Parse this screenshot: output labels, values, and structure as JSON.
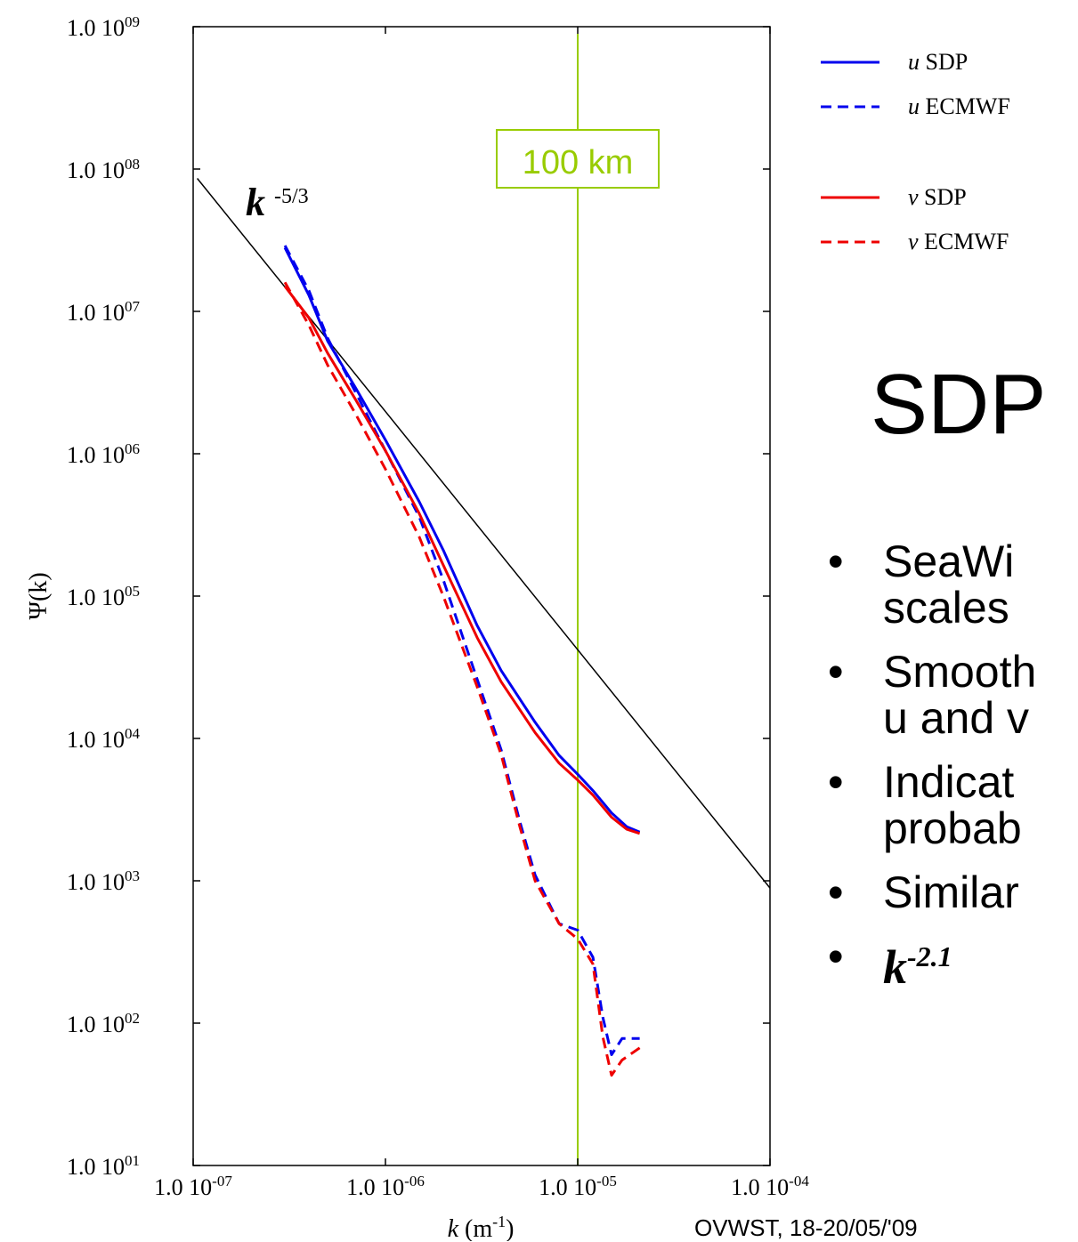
{
  "chart_data": {
    "type": "line",
    "x_scale": "log",
    "y_scale": "log",
    "xlim": [
      1e-07,
      0.0001
    ],
    "ylim": [
      10,
      1000000000.0
    ],
    "xlabel_main": "k",
    "xlabel_unit_base": "(m",
    "xlabel_unit_exp": "-1",
    "xlabel_unit_close": ")",
    "ylabel": "Ψ(k)",
    "x_ticks": [
      {
        "value": 1e-07,
        "base": "1.0 10",
        "exp": "-07"
      },
      {
        "value": 1e-06,
        "base": "1.0 10",
        "exp": "-06"
      },
      {
        "value": 1e-05,
        "base": "1.0 10",
        "exp": "-05"
      },
      {
        "value": 0.0001,
        "base": "1.0 10",
        "exp": "-04"
      }
    ],
    "y_ticks": [
      {
        "value": 1000000000.0,
        "base": "1.0 10",
        "exp": "09"
      },
      {
        "value": 100000000.0,
        "base": "1.0 10",
        "exp": "08"
      },
      {
        "value": 10000000.0,
        "base": "1.0 10",
        "exp": "07"
      },
      {
        "value": 1000000.0,
        "base": "1.0 10",
        "exp": "06"
      },
      {
        "value": 100000.0,
        "base": "1.0 10",
        "exp": "05"
      },
      {
        "value": 10000.0,
        "base": "1.0 10",
        "exp": "04"
      },
      {
        "value": 1000.0,
        "base": "1.0 10",
        "exp": "03"
      },
      {
        "value": 100.0,
        "base": "1.0 10",
        "exp": "02"
      },
      {
        "value": 10.0,
        "base": "1.0 10",
        "exp": "01"
      }
    ],
    "series": [
      {
        "name_var": "u",
        "name_src": "SDP",
        "color": "#0000ee",
        "dash": "solid",
        "points": [
          [
            3e-07,
            28000000.0
          ],
          [
            4e-07,
            13000000.0
          ],
          [
            5e-07,
            6200000.0
          ],
          [
            7e-07,
            2900000.0
          ],
          [
            1e-06,
            1250000.0
          ],
          [
            1.5e-06,
            460000.0
          ],
          [
            2e-06,
            210000.0
          ],
          [
            3e-06,
            62000.0
          ],
          [
            4e-06,
            30000.0
          ],
          [
            6e-06,
            13000.0
          ],
          [
            8e-06,
            7600.0
          ],
          [
            1e-05,
            5600.0
          ],
          [
            1.2e-05,
            4300.0
          ],
          [
            1.5e-05,
            3000.0
          ],
          [
            1.8e-05,
            2400.0
          ],
          [
            2.1e-05,
            2200.0
          ]
        ]
      },
      {
        "name_var": "u",
        "name_src": "ECMWF",
        "color": "#0000ee",
        "dash": "dashed",
        "points": [
          [
            3e-07,
            29000000.0
          ],
          [
            4e-07,
            14000000.0
          ],
          [
            5e-07,
            6500000.0
          ],
          [
            7e-07,
            2700000.0
          ],
          [
            1e-06,
            1050000.0
          ],
          [
            1.5e-06,
            360000.0
          ],
          [
            2e-06,
            130000.0
          ],
          [
            3e-06,
            26000.0
          ],
          [
            4e-06,
            8300.0
          ],
          [
            5e-06,
            2600.0
          ],
          [
            6e-06,
            1100.0
          ],
          [
            8e-06,
            500.0
          ],
          [
            1e-05,
            450.0
          ],
          [
            1.2e-05,
            290.0
          ],
          [
            1.35e-05,
            110.0
          ],
          [
            1.5e-05,
            60.0
          ],
          [
            1.7e-05,
            78.0
          ],
          [
            2.1e-05,
            78.0
          ]
        ]
      },
      {
        "name_var": "v",
        "name_src": "SDP",
        "color": "#ee0000",
        "dash": "solid",
        "points": [
          [
            3e-07,
            15000000.0
          ],
          [
            4e-07,
            9000000.0
          ],
          [
            5e-07,
            5100000.0
          ],
          [
            7e-07,
            2400000.0
          ],
          [
            1e-06,
            1050000.0
          ],
          [
            1.5e-06,
            380000.0
          ],
          [
            2e-06,
            165000.0
          ],
          [
            3e-06,
            51000.0
          ],
          [
            4e-06,
            25000.0
          ],
          [
            6e-06,
            11000.0
          ],
          [
            8e-06,
            6700.0
          ],
          [
            1e-05,
            5100.0
          ],
          [
            1.2e-05,
            4000.0
          ],
          [
            1.5e-05,
            2800.0
          ],
          [
            1.8e-05,
            2300.0
          ],
          [
            2.1e-05,
            2150.0
          ]
        ]
      },
      {
        "name_var": "v",
        "name_src": "ECMWF",
        "color": "#ee0000",
        "dash": "dashed",
        "points": [
          [
            3e-07,
            16000000.0
          ],
          [
            4e-07,
            8000000.0
          ],
          [
            5e-07,
            4200000.0
          ],
          [
            7e-07,
            1900000.0
          ],
          [
            1e-06,
            780000.0
          ],
          [
            1.5e-06,
            260000.0
          ],
          [
            2e-06,
            100000.0
          ],
          [
            3e-06,
            23000.0
          ],
          [
            4e-06,
            7700.0
          ],
          [
            5e-06,
            2400.0
          ],
          [
            6e-06,
            1000.0
          ],
          [
            8e-06,
            500.0
          ],
          [
            1e-05,
            390.0
          ],
          [
            1.2e-05,
            260.0
          ],
          [
            1.35e-05,
            80.0
          ],
          [
            1.5e-05,
            43.0
          ],
          [
            1.7e-05,
            55.0
          ],
          [
            2.1e-05,
            67.0
          ]
        ]
      }
    ],
    "reference_line": {
      "label_base": "k",
      "label_exp": "-5/3",
      "color": "#000000",
      "points": [
        [
          1.05e-07,
          86000000.0
        ],
        [
          0.0001,
          890.0
        ]
      ]
    },
    "marker": {
      "x": 1e-05,
      "label": "100 km",
      "color": "#99cc00"
    },
    "legend_position": "top-right, outside plot"
  },
  "panel": {
    "title": "SDP",
    "bullets": [
      "SeaWi\nscales",
      "Smooth\nu and v",
      "Indicat\nprobab",
      "Similar"
    ],
    "last_bullet_base": "k",
    "last_bullet_exp": "-2.1",
    "bullet_symbol": "•"
  },
  "footer": "OVWST, 18-20/05/'09"
}
